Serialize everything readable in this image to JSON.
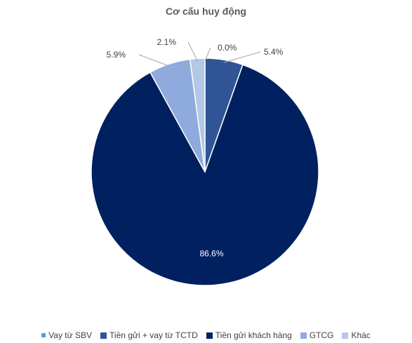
{
  "chart_data": {
    "type": "pie",
    "title": "Cơ cấu huy động",
    "categories": [
      "Vay từ SBV",
      "Tiền gửi + vay từ TCTD",
      "Tiền gửi khách hàng",
      "GTCG",
      "Khác"
    ],
    "values": [
      0.0,
      5.4,
      86.6,
      5.9,
      2.1
    ],
    "data_labels": [
      "0.0%",
      "5.4%",
      "86.6%",
      "5.9%",
      "2.1%"
    ],
    "colors": [
      "#5b9bd5",
      "#2f5597",
      "#002060",
      "#8faadc",
      "#b4c7e7"
    ],
    "legend_position": "bottom"
  }
}
